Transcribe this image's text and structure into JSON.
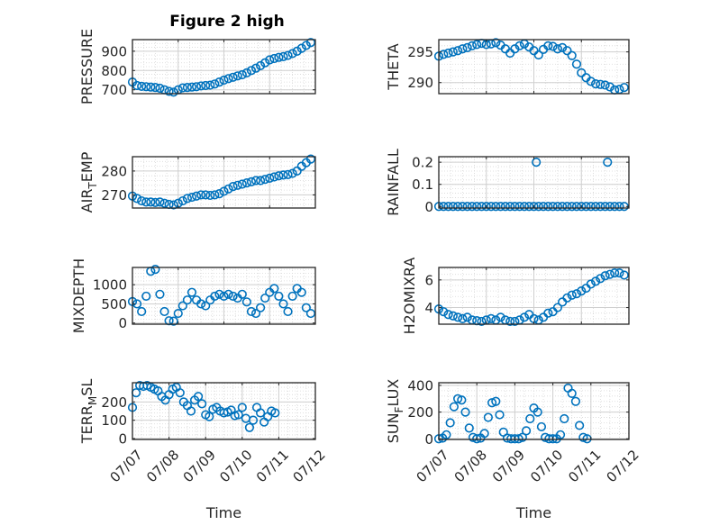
{
  "figure_title": "Figure 2 high",
  "colors": {
    "marker": "#0072BD",
    "axis": "#262626",
    "grid": "#d8d8d8",
    "background": "#ffffff"
  },
  "marker": "open-circle",
  "chart_data": [
    {
      "type": "scatter",
      "ylabel": "PRESSURE",
      "xlabel": "",
      "grid": true,
      "ylim": [
        680,
        960
      ],
      "yticks": [
        700,
        800,
        900
      ],
      "yticklabels": [
        "700",
        "800",
        "900"
      ],
      "xlim": [
        0,
        4
      ],
      "xticks": [
        0,
        1,
        2,
        3,
        4
      ],
      "xticklabels": [],
      "x": [
        0,
        0.1,
        0.2,
        0.3,
        0.4,
        0.5,
        0.6,
        0.7,
        0.8,
        0.9,
        1.0,
        1.1,
        1.2,
        1.3,
        1.4,
        1.5,
        1.6,
        1.7,
        1.8,
        1.9,
        2.0,
        2.1,
        2.2,
        2.3,
        2.4,
        2.5,
        2.6,
        2.7,
        2.8,
        2.9,
        3.0,
        3.1,
        3.2,
        3.3,
        3.4,
        3.5,
        3.6,
        3.7,
        3.8,
        3.9
      ],
      "y": [
        740,
        722,
        718,
        716,
        714,
        712,
        708,
        700,
        692,
        688,
        700,
        710,
        712,
        714,
        716,
        720,
        722,
        724,
        730,
        740,
        750,
        758,
        765,
        772,
        778,
        788,
        800,
        812,
        825,
        840,
        855,
        862,
        868,
        872,
        878,
        888,
        900,
        915,
        930,
        945
      ]
    },
    {
      "type": "scatter",
      "ylabel": "THETA",
      "xlabel": "",
      "grid": true,
      "ylim": [
        288.2,
        297
      ],
      "yticks": [
        290,
        295
      ],
      "yticklabels": [
        "290",
        "295"
      ],
      "xlim": [
        0,
        4
      ],
      "xticks": [
        0,
        1,
        2,
        3,
        4
      ],
      "xticklabels": [],
      "x": [
        0,
        0.1,
        0.2,
        0.3,
        0.4,
        0.5,
        0.6,
        0.7,
        0.8,
        0.9,
        1.0,
        1.1,
        1.2,
        1.3,
        1.4,
        1.5,
        1.6,
        1.7,
        1.8,
        1.9,
        2.0,
        2.1,
        2.2,
        2.3,
        2.4,
        2.5,
        2.6,
        2.7,
        2.8,
        2.9,
        3.0,
        3.1,
        3.2,
        3.3,
        3.4,
        3.5,
        3.6,
        3.7,
        3.8,
        3.9
      ],
      "y": [
        294.3,
        294.6,
        294.8,
        295.0,
        295.2,
        295.5,
        295.7,
        296.0,
        296.2,
        296.4,
        296.2,
        296.3,
        296.5,
        296.1,
        295.5,
        294.8,
        295.5,
        296.0,
        296.3,
        295.8,
        295.2,
        294.5,
        295.4,
        296.0,
        295.9,
        295.5,
        295.7,
        295.2,
        294.4,
        293.0,
        291.6,
        290.8,
        290.2,
        289.8,
        289.7,
        289.6,
        289.3,
        288.8,
        288.9,
        289.2
      ]
    },
    {
      "type": "scatter",
      "ylabel": "AIR_TEMP",
      "xlabel": "",
      "grid": true,
      "ylim": [
        264.5,
        286
      ],
      "yticks": [
        270,
        280
      ],
      "yticklabels": [
        "270",
        "280"
      ],
      "xlim": [
        0,
        4
      ],
      "xticks": [
        0,
        1,
        2,
        3,
        4
      ],
      "xticklabels": [],
      "x": [
        0,
        0.1,
        0.2,
        0.3,
        0.4,
        0.5,
        0.6,
        0.7,
        0.8,
        0.9,
        1.0,
        1.1,
        1.2,
        1.3,
        1.4,
        1.5,
        1.6,
        1.7,
        1.8,
        1.9,
        2.0,
        2.1,
        2.2,
        2.3,
        2.4,
        2.5,
        2.6,
        2.7,
        2.8,
        2.9,
        3.0,
        3.1,
        3.2,
        3.3,
        3.4,
        3.5,
        3.6,
        3.7,
        3.8,
        3.9
      ],
      "y": [
        269.5,
        268.5,
        267.5,
        267.0,
        267.0,
        266.8,
        267.0,
        266.5,
        266.0,
        265.8,
        266.5,
        267.5,
        268.5,
        269.0,
        269.5,
        270.0,
        270.0,
        269.8,
        270.0,
        270.5,
        271.5,
        272.5,
        273.5,
        274.0,
        274.5,
        275.0,
        275.5,
        276.0,
        276.0,
        276.5,
        277.0,
        277.5,
        278.0,
        278.3,
        278.5,
        279.0,
        280.0,
        282.0,
        283.5,
        285.0
      ]
    },
    {
      "type": "scatter",
      "ylabel": "RAINFALL",
      "xlabel": "",
      "grid": true,
      "ylim": [
        -0.007,
        0.225
      ],
      "yticks": [
        0,
        0.1,
        0.2
      ],
      "yticklabels": [
        "0",
        "0.1",
        "0.2"
      ],
      "xlim": [
        0,
        4
      ],
      "xticks": [
        0,
        1,
        2,
        3,
        4
      ],
      "xticklabels": [],
      "x": [
        0,
        0.1,
        0.2,
        0.3,
        0.4,
        0.5,
        0.6,
        0.7,
        0.8,
        0.9,
        1.0,
        1.1,
        1.2,
        1.3,
        1.4,
        1.5,
        1.6,
        1.7,
        1.8,
        1.9,
        2.0,
        2.05,
        2.1,
        2.2,
        2.3,
        2.4,
        2.5,
        2.6,
        2.7,
        2.8,
        2.9,
        3.0,
        3.1,
        3.2,
        3.3,
        3.4,
        3.5,
        3.55,
        3.6,
        3.7,
        3.8,
        3.9
      ],
      "y": [
        0,
        0,
        0,
        0,
        0,
        0,
        0,
        0,
        0,
        0,
        0,
        0,
        0,
        0,
        0,
        0,
        0,
        0,
        0,
        0,
        0,
        0.2,
        0,
        0,
        0,
        0,
        0,
        0,
        0,
        0,
        0,
        0,
        0,
        0,
        0,
        0,
        0,
        0.2,
        0,
        0,
        0,
        0
      ]
    },
    {
      "type": "scatter",
      "ylabel": "MIXDEPTH",
      "xlabel": "",
      "grid": true,
      "ylim": [
        -30,
        1450
      ],
      "yticks": [
        0,
        500,
        1000
      ],
      "yticklabels": [
        "0",
        "500",
        "1000"
      ],
      "xlim": [
        0,
        4
      ],
      "xticks": [
        0,
        1,
        2,
        3,
        4
      ],
      "xticklabels": [],
      "x": [
        0,
        0.1,
        0.2,
        0.3,
        0.4,
        0.5,
        0.6,
        0.7,
        0.8,
        0.9,
        1.0,
        1.1,
        1.2,
        1.3,
        1.4,
        1.5,
        1.6,
        1.7,
        1.8,
        1.9,
        2.0,
        2.1,
        2.2,
        2.3,
        2.4,
        2.5,
        2.6,
        2.7,
        2.8,
        2.9,
        3.0,
        3.1,
        3.2,
        3.3,
        3.4,
        3.5,
        3.6,
        3.7,
        3.8,
        3.9
      ],
      "y": [
        560,
        500,
        300,
        700,
        1350,
        1400,
        750,
        300,
        60,
        50,
        250,
        450,
        600,
        800,
        600,
        500,
        450,
        600,
        700,
        750,
        700,
        750,
        700,
        650,
        750,
        550,
        300,
        250,
        400,
        650,
        800,
        900,
        700,
        500,
        300,
        700,
        900,
        800,
        400,
        250
      ]
    },
    {
      "type": "scatter",
      "ylabel": "H2OMIXRA",
      "xlabel": "",
      "grid": true,
      "ylim": [
        2.8,
        6.9
      ],
      "yticks": [
        4,
        6
      ],
      "yticklabels": [
        "4",
        "6"
      ],
      "xlim": [
        0,
        4
      ],
      "xticks": [
        0,
        1,
        2,
        3,
        4
      ],
      "xticklabels": [],
      "x": [
        0,
        0.1,
        0.2,
        0.3,
        0.4,
        0.5,
        0.6,
        0.7,
        0.8,
        0.9,
        1.0,
        1.1,
        1.2,
        1.3,
        1.4,
        1.5,
        1.6,
        1.7,
        1.8,
        1.9,
        2.0,
        2.1,
        2.2,
        2.3,
        2.4,
        2.5,
        2.6,
        2.7,
        2.8,
        2.9,
        3.0,
        3.1,
        3.2,
        3.3,
        3.4,
        3.5,
        3.6,
        3.7,
        3.8,
        3.9
      ],
      "y": [
        3.9,
        3.7,
        3.5,
        3.4,
        3.3,
        3.2,
        3.3,
        3.1,
        3.05,
        3.0,
        3.1,
        3.2,
        3.1,
        3.3,
        3.1,
        3.0,
        3.0,
        3.1,
        3.3,
        3.5,
        3.2,
        3.1,
        3.3,
        3.6,
        3.7,
        4.0,
        4.4,
        4.7,
        4.9,
        5.0,
        5.2,
        5.4,
        5.7,
        5.9,
        6.1,
        6.3,
        6.4,
        6.5,
        6.5,
        6.35
      ]
    },
    {
      "type": "scatter",
      "ylabel": "TERR_MSL",
      "xlabel": "Time",
      "grid": true,
      "ylim": [
        -5,
        305
      ],
      "yticks": [
        0,
        100,
        200
      ],
      "yticklabels": [
        "0",
        "100",
        "200"
      ],
      "xlim": [
        0,
        5
      ],
      "xticks": [
        0,
        1,
        2,
        3,
        4,
        5
      ],
      "xticklabels": [
        "07/07",
        "07/08",
        "07/09",
        "07/10",
        "07/11",
        "07/12"
      ],
      "x": [
        0,
        0.1,
        0.2,
        0.3,
        0.4,
        0.5,
        0.6,
        0.7,
        0.8,
        0.9,
        1.0,
        1.1,
        1.2,
        1.3,
        1.4,
        1.5,
        1.6,
        1.7,
        1.8,
        1.9,
        2.0,
        2.1,
        2.2,
        2.3,
        2.4,
        2.5,
        2.6,
        2.7,
        2.8,
        2.9,
        3.0,
        3.1,
        3.2,
        3.3,
        3.4,
        3.5,
        3.6,
        3.7,
        3.8,
        3.9
      ],
      "y": [
        170,
        250,
        290,
        285,
        290,
        280,
        270,
        260,
        230,
        210,
        240,
        270,
        280,
        250,
        200,
        180,
        150,
        210,
        230,
        190,
        130,
        120,
        160,
        170,
        150,
        140,
        145,
        155,
        125,
        130,
        170,
        110,
        60,
        100,
        170,
        140,
        90,
        120,
        150,
        140
      ]
    },
    {
      "type": "scatter",
      "ylabel": "SUN_FLUX",
      "xlabel": "Time",
      "grid": true,
      "ylim": [
        -5,
        420
      ],
      "yticks": [
        0,
        200,
        400
      ],
      "yticklabels": [
        "0",
        "200",
        "400"
      ],
      "xlim": [
        0,
        5
      ],
      "xticks": [
        0,
        1,
        2,
        3,
        4,
        5
      ],
      "xticklabels": [
        "07/07",
        "07/08",
        "07/09",
        "07/10",
        "07/11",
        "07/12"
      ],
      "x": [
        0,
        0.1,
        0.2,
        0.3,
        0.4,
        0.5,
        0.6,
        0.7,
        0.8,
        0.9,
        1.0,
        1.1,
        1.2,
        1.3,
        1.4,
        1.5,
        1.6,
        1.7,
        1.8,
        1.9,
        2.0,
        2.1,
        2.2,
        2.3,
        2.4,
        2.5,
        2.6,
        2.7,
        2.8,
        2.9,
        3.0,
        3.1,
        3.2,
        3.3,
        3.4,
        3.5,
        3.6,
        3.7,
        3.8,
        3.9
      ],
      "y": [
        0,
        5,
        30,
        120,
        240,
        300,
        290,
        200,
        80,
        10,
        0,
        5,
        40,
        160,
        270,
        280,
        180,
        50,
        5,
        0,
        0,
        0,
        10,
        60,
        150,
        230,
        200,
        90,
        10,
        0,
        0,
        0,
        30,
        150,
        380,
        340,
        280,
        100,
        10,
        0
      ]
    }
  ]
}
